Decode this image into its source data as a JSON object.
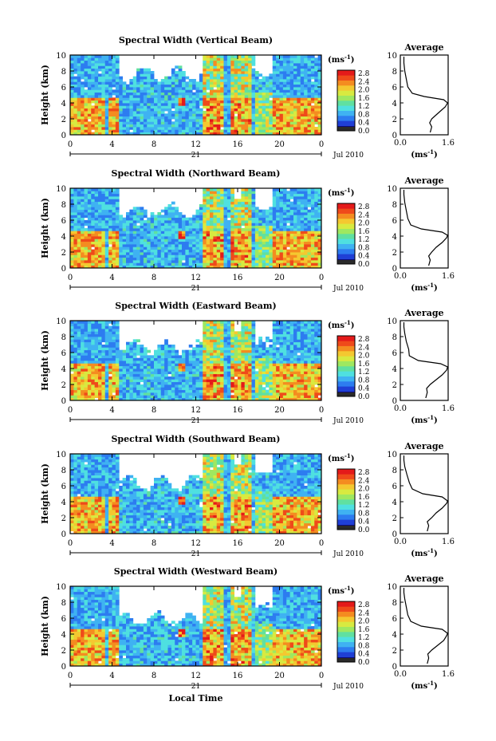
{
  "figure": {
    "xlabel": "Local Time",
    "date_label": "Jul 2010",
    "day_label": "21",
    "colorbar_unit": "(ms",
    "colorbar_unit_sup": "-1",
    "colorbar_unit_close": ")",
    "avg_title": "Average",
    "avg_xlabel": "(ms",
    "avg_xlabel_sup": "-1",
    "avg_xlabel_close": ")",
    "ylabel": "Height (km)",
    "colormap": [
      "#0b0b7e",
      "#1f3fd6",
      "#2d7cf0",
      "#3fb2f2",
      "#4fe0e0",
      "#60e0a0",
      "#9fe860",
      "#d8ea40",
      "#f4c830",
      "#f48c20",
      "#ef4a1a",
      "#e41a1a"
    ],
    "colormap_bottom": [
      "#2a2a2a",
      "#6b4fa0"
    ]
  },
  "chart_data": [
    {
      "type": "heatmap",
      "title": "Spectral Width (Vertical Beam)",
      "xlabel": "Local Time",
      "ylabel": "Height (km)",
      "xlim": [
        0,
        24
      ],
      "ylim": [
        0,
        10
      ],
      "xticks": [
        "0",
        "4",
        "8",
        "12",
        "16",
        "20",
        "0"
      ],
      "yticks": [
        "0",
        "2",
        "4",
        "6",
        "8",
        "10"
      ],
      "colorbar": {
        "min": 0.0,
        "max": 3.0,
        "ticks": [
          "2.8",
          "2.4",
          "2.0",
          "1.6",
          "1.2",
          "0.8",
          "0.4",
          "0.0"
        ]
      },
      "average_profile": {
        "title": "Average",
        "xlim": [
          0.0,
          1.6
        ],
        "xticks": [
          "0.0",
          "1.6"
        ],
        "points": [
          [
            1.0,
            0.3
          ],
          [
            1.05,
            1.0
          ],
          [
            0.98,
            1.5
          ],
          [
            1.05,
            2.0
          ],
          [
            1.2,
            2.5
          ],
          [
            1.35,
            3.0
          ],
          [
            1.5,
            3.5
          ],
          [
            1.58,
            4.0
          ],
          [
            1.45,
            4.4
          ],
          [
            0.8,
            4.8
          ],
          [
            0.4,
            5.2
          ],
          [
            0.25,
            6.0
          ],
          [
            0.2,
            7.0
          ],
          [
            0.15,
            8.0
          ],
          [
            0.12,
            9.0
          ],
          [
            0.12,
            9.8
          ]
        ]
      }
    },
    {
      "type": "heatmap",
      "title": "Spectral Width (Northward Beam)",
      "xlabel": "Local Time",
      "ylabel": "Height (km)",
      "xlim": [
        0,
        24
      ],
      "ylim": [
        0,
        10
      ],
      "xticks": [
        "0",
        "4",
        "8",
        "12",
        "16",
        "20",
        "0"
      ],
      "yticks": [
        "0",
        "2",
        "4",
        "6",
        "8",
        "10"
      ],
      "colorbar": {
        "min": 0.0,
        "max": 3.0,
        "ticks": [
          "2.8",
          "2.4",
          "2.0",
          "1.6",
          "1.2",
          "0.8",
          "0.4",
          "0.0"
        ]
      },
      "average_profile": {
        "title": "Average",
        "xlim": [
          0.0,
          1.6
        ],
        "xticks": [
          "0.0",
          "1.6"
        ],
        "points": [
          [
            0.95,
            0.3
          ],
          [
            1.0,
            1.0
          ],
          [
            0.95,
            1.5
          ],
          [
            1.05,
            2.0
          ],
          [
            1.2,
            2.6
          ],
          [
            1.4,
            3.2
          ],
          [
            1.55,
            3.8
          ],
          [
            1.58,
            4.1
          ],
          [
            1.4,
            4.5
          ],
          [
            0.7,
            4.9
          ],
          [
            0.35,
            5.4
          ],
          [
            0.25,
            6.2
          ],
          [
            0.2,
            7.2
          ],
          [
            0.15,
            8.2
          ],
          [
            0.12,
            9.2
          ],
          [
            0.12,
            9.8
          ]
        ]
      }
    },
    {
      "type": "heatmap",
      "title": "Spectral Width (Eastward Beam)",
      "xlabel": "Local Time",
      "ylabel": "Height (km)",
      "xlim": [
        0,
        24
      ],
      "ylim": [
        0,
        10
      ],
      "xticks": [
        "0",
        "4",
        "8",
        "12",
        "16",
        "20",
        "0"
      ],
      "yticks": [
        "0",
        "2",
        "4",
        "6",
        "8",
        "10"
      ],
      "colorbar": {
        "min": 0.0,
        "max": 3.0,
        "ticks": [
          "2.8",
          "2.4",
          "2.0",
          "1.6",
          "1.2",
          "0.8",
          "0.4",
          "0.0"
        ]
      },
      "average_profile": {
        "title": "Average",
        "xlim": [
          0.0,
          1.6
        ],
        "xticks": [
          "0.0",
          "1.6"
        ],
        "points": [
          [
            0.85,
            0.3
          ],
          [
            0.9,
            1.0
          ],
          [
            0.88,
            1.5
          ],
          [
            1.0,
            2.0
          ],
          [
            1.2,
            2.6
          ],
          [
            1.4,
            3.2
          ],
          [
            1.55,
            3.8
          ],
          [
            1.58,
            4.2
          ],
          [
            1.35,
            4.6
          ],
          [
            0.6,
            5.0
          ],
          [
            0.3,
            5.6
          ],
          [
            0.28,
            6.4
          ],
          [
            0.2,
            7.4
          ],
          [
            0.15,
            8.4
          ],
          [
            0.12,
            9.2
          ],
          [
            0.12,
            9.8
          ]
        ]
      }
    },
    {
      "type": "heatmap",
      "title": "Spectral Width (Southward Beam)",
      "xlabel": "Local Time",
      "ylabel": "Height (km)",
      "xlim": [
        0,
        24
      ],
      "ylim": [
        0,
        10
      ],
      "xticks": [
        "0",
        "4",
        "8",
        "12",
        "16",
        "20",
        "0"
      ],
      "yticks": [
        "0",
        "2",
        "4",
        "6",
        "8",
        "10"
      ],
      "colorbar": {
        "min": 0.0,
        "max": 3.0,
        "ticks": [
          "2.8",
          "2.4",
          "2.0",
          "1.6",
          "1.2",
          "0.8",
          "0.4",
          "0.0"
        ]
      },
      "average_profile": {
        "title": "Average",
        "xlim": [
          0.0,
          1.6
        ],
        "xticks": [
          "0.0",
          "1.6"
        ],
        "points": [
          [
            0.9,
            0.3
          ],
          [
            0.95,
            1.0
          ],
          [
            0.9,
            1.5
          ],
          [
            1.05,
            2.0
          ],
          [
            1.2,
            2.6
          ],
          [
            1.4,
            3.2
          ],
          [
            1.55,
            3.8
          ],
          [
            1.58,
            4.1
          ],
          [
            1.4,
            4.6
          ],
          [
            0.75,
            5.0
          ],
          [
            0.4,
            5.6
          ],
          [
            0.3,
            6.4
          ],
          [
            0.22,
            7.4
          ],
          [
            0.15,
            8.4
          ],
          [
            0.12,
            9.2
          ],
          [
            0.12,
            9.8
          ]
        ]
      }
    },
    {
      "type": "heatmap",
      "title": "Spectral Width (Westward Beam)",
      "xlabel": "Local Time",
      "ylabel": "Height (km)",
      "xlim": [
        0,
        24
      ],
      "ylim": [
        0,
        10
      ],
      "xticks": [
        "0",
        "4",
        "8",
        "12",
        "16",
        "20",
        "0"
      ],
      "yticks": [
        "0",
        "2",
        "4",
        "6",
        "8",
        "10"
      ],
      "colorbar": {
        "min": 0.0,
        "max": 3.0,
        "ticks": [
          "2.8",
          "2.4",
          "2.0",
          "1.6",
          "1.2",
          "0.8",
          "0.4",
          "0.0"
        ]
      },
      "average_profile": {
        "title": "Average",
        "xlim": [
          0.0,
          1.6
        ],
        "xticks": [
          "0.0",
          "1.6"
        ],
        "points": [
          [
            0.9,
            0.3
          ],
          [
            0.95,
            1.0
          ],
          [
            0.92,
            1.5
          ],
          [
            1.05,
            2.0
          ],
          [
            1.25,
            2.6
          ],
          [
            1.45,
            3.2
          ],
          [
            1.55,
            3.8
          ],
          [
            1.58,
            4.1
          ],
          [
            1.4,
            4.6
          ],
          [
            0.7,
            5.0
          ],
          [
            0.35,
            5.6
          ],
          [
            0.25,
            6.4
          ],
          [
            0.2,
            7.4
          ],
          [
            0.15,
            8.4
          ],
          [
            0.12,
            9.2
          ],
          [
            0.12,
            9.8
          ]
        ]
      }
    }
  ]
}
